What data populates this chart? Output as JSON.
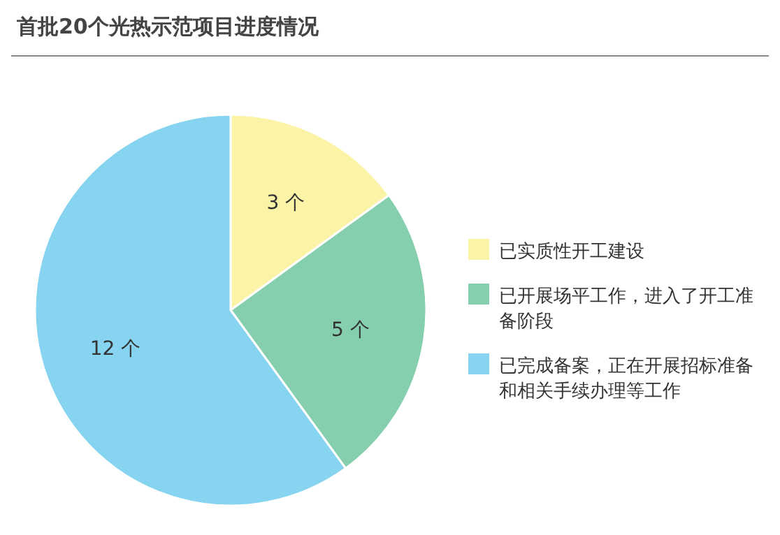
{
  "chart_data": {
    "type": "pie",
    "title": "首批20个光热示范项目进度情况",
    "categories": [
      "已实质性开工建设",
      "已开展场平工作，进入了开工准备阶段",
      "已完成备案，正在开展招标准备和相关手续办理等工作"
    ],
    "values": [
      3,
      5,
      12
    ],
    "value_labels": [
      "3 个",
      "5 个",
      "12 个"
    ],
    "colors": [
      "#fbf3a6",
      "#86cfae",
      "#86d4ef"
    ],
    "legend": "right"
  }
}
